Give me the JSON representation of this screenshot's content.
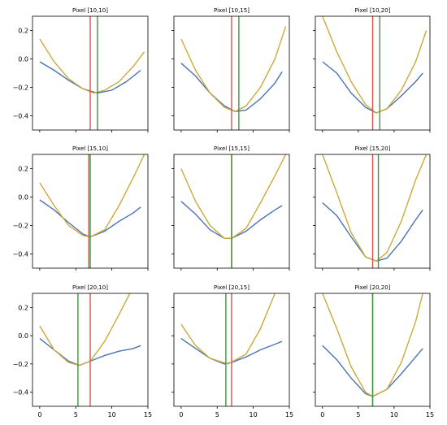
{
  "chart_data": [
    {
      "type": "line",
      "title": "Pixel [10,10]",
      "xlim": [
        -1,
        15
      ],
      "ylim": [
        -0.5,
        0.3
      ],
      "xticks": [
        0,
        5,
        10,
        15
      ],
      "yticks": [
        -0.4,
        -0.2,
        0.0,
        0.2
      ],
      "series": [
        {
          "color": "#4c72b0",
          "x": [
            0,
            2,
            4,
            6,
            8,
            10,
            12,
            14
          ],
          "y": [
            -0.02,
            -0.08,
            -0.15,
            -0.21,
            -0.24,
            -0.22,
            -0.16,
            -0.08
          ]
        },
        {
          "color": "#ccaa3a",
          "x": [
            0,
            2,
            4,
            6,
            7.5,
            9,
            11,
            13,
            14.5
          ],
          "y": [
            0.14,
            -0.02,
            -0.14,
            -0.21,
            -0.24,
            -0.22,
            -0.16,
            -0.05,
            0.05
          ]
        }
      ],
      "vlines": [
        {
          "x": 7,
          "color": "#d9534f"
        },
        {
          "x": 8,
          "color": "#3a9a3a"
        }
      ]
    },
    {
      "type": "line",
      "title": "Pixel [10,15]",
      "xlim": [
        -1,
        15
      ],
      "ylim": [
        -0.5,
        0.3
      ],
      "xticks": [
        0,
        5,
        10,
        15
      ],
      "yticks": [
        -0.4,
        -0.2,
        0.0,
        0.2
      ],
      "series": [
        {
          "color": "#4c72b0",
          "x": [
            0,
            2,
            4,
            6,
            7.5,
            9,
            11,
            13,
            14
          ],
          "y": [
            -0.03,
            -0.12,
            -0.24,
            -0.33,
            -0.37,
            -0.36,
            -0.28,
            -0.17,
            -0.09
          ]
        },
        {
          "color": "#ccaa3a",
          "x": [
            0,
            2,
            4,
            6,
            7.5,
            9,
            11,
            13,
            14.5
          ],
          "y": [
            0.14,
            -0.08,
            -0.24,
            -0.34,
            -0.37,
            -0.33,
            -0.2,
            0.0,
            0.23
          ]
        }
      ],
      "vlines": [
        {
          "x": 7,
          "color": "#d9534f"
        },
        {
          "x": 8,
          "color": "#3a9a3a"
        }
      ]
    },
    {
      "type": "line",
      "title": "Pixel [10,20]",
      "xlim": [
        -1,
        15
      ],
      "ylim": [
        -0.5,
        0.3
      ],
      "xticks": [
        0,
        5,
        10,
        15
      ],
      "yticks": [
        -0.4,
        -0.2,
        0.0,
        0.2
      ],
      "series": [
        {
          "color": "#4c72b0",
          "x": [
            0,
            2,
            4,
            6,
            7.5,
            9,
            11,
            13,
            14
          ],
          "y": [
            -0.02,
            -0.1,
            -0.24,
            -0.34,
            -0.38,
            -0.35,
            -0.26,
            -0.16,
            -0.1
          ]
        },
        {
          "color": "#ccaa3a",
          "x": [
            0,
            2,
            4,
            6,
            7.5,
            9,
            11,
            13,
            14.5
          ],
          "y": [
            0.3,
            0.05,
            -0.16,
            -0.32,
            -0.38,
            -0.35,
            -0.22,
            -0.02,
            0.2
          ]
        }
      ],
      "vlines": [
        {
          "x": 7,
          "color": "#d9534f"
        },
        {
          "x": 8,
          "color": "#3a9a3a"
        }
      ]
    },
    {
      "type": "line",
      "title": "Pixel [15,10]",
      "xlim": [
        -1,
        15
      ],
      "ylim": [
        -0.5,
        0.3
      ],
      "xticks": [
        0,
        5,
        10,
        15
      ],
      "yticks": [
        -0.4,
        -0.2,
        0.0,
        0.2
      ],
      "series": [
        {
          "color": "#4c72b0",
          "x": [
            0,
            2,
            4,
            6,
            7,
            9,
            11,
            13,
            14
          ],
          "y": [
            -0.02,
            -0.09,
            -0.18,
            -0.26,
            -0.28,
            -0.24,
            -0.17,
            -0.11,
            -0.07
          ]
        },
        {
          "color": "#ccaa3a",
          "x": [
            0,
            2,
            4,
            6,
            7,
            9,
            11,
            13,
            14.5
          ],
          "y": [
            0.1,
            -0.06,
            -0.2,
            -0.27,
            -0.28,
            -0.23,
            -0.06,
            0.14,
            0.3
          ]
        }
      ],
      "vlines": [
        {
          "x": 6.8,
          "color": "#d9534f"
        },
        {
          "x": 7,
          "color": "#3a9a3a"
        }
      ]
    },
    {
      "type": "line",
      "title": "Pixel [15,15]",
      "xlim": [
        -1,
        15
      ],
      "ylim": [
        -0.5,
        0.3
      ],
      "xticks": [
        0,
        5,
        10,
        15
      ],
      "yticks": [
        -0.4,
        -0.2,
        0.0,
        0.2
      ],
      "series": [
        {
          "color": "#4c72b0",
          "x": [
            0,
            2,
            4,
            6,
            7,
            9,
            11,
            13,
            14
          ],
          "y": [
            -0.03,
            -0.12,
            -0.23,
            -0.29,
            -0.29,
            -0.24,
            -0.16,
            -0.09,
            -0.06
          ]
        },
        {
          "color": "#ccaa3a",
          "x": [
            0,
            2,
            4,
            6,
            7,
            9,
            11,
            13,
            14.5
          ],
          "y": [
            0.2,
            -0.03,
            -0.2,
            -0.29,
            -0.29,
            -0.22,
            -0.04,
            0.15,
            0.3
          ]
        }
      ],
      "vlines": [
        {
          "x": 7,
          "color": "#d9534f"
        },
        {
          "x": 7,
          "color": "#3a9a3a"
        }
      ]
    },
    {
      "type": "line",
      "title": "Pixel [15,20]",
      "xlim": [
        -1,
        15
      ],
      "ylim": [
        -0.5,
        0.3
      ],
      "xticks": [
        0,
        5,
        10,
        15
      ],
      "yticks": [
        -0.4,
        -0.2,
        0.0,
        0.2
      ],
      "series": [
        {
          "color": "#4c72b0",
          "x": [
            0,
            2,
            4,
            6,
            7.5,
            9,
            11,
            13,
            14
          ],
          "y": [
            -0.04,
            -0.13,
            -0.28,
            -0.42,
            -0.45,
            -0.43,
            -0.31,
            -0.16,
            -0.09
          ]
        },
        {
          "color": "#ccaa3a",
          "x": [
            0,
            2,
            4,
            6,
            7.5,
            9,
            11,
            13,
            14.5
          ],
          "y": [
            0.3,
            0.03,
            -0.25,
            -0.42,
            -0.45,
            -0.39,
            -0.17,
            0.12,
            0.3
          ]
        }
      ],
      "vlines": [
        {
          "x": 7,
          "color": "#d9534f"
        },
        {
          "x": 7.8,
          "color": "#3a9a3a"
        }
      ]
    },
    {
      "type": "line",
      "title": "Pixel [20,10]",
      "xlim": [
        -1,
        15
      ],
      "ylim": [
        -0.5,
        0.3
      ],
      "xticks": [
        0,
        5,
        10,
        15
      ],
      "yticks": [
        -0.4,
        -0.2,
        0.0,
        0.2
      ],
      "series": [
        {
          "color": "#4c72b0",
          "x": [
            0,
            2,
            4,
            5.5,
            7,
            9,
            11,
            13,
            14
          ],
          "y": [
            -0.02,
            -0.1,
            -0.18,
            -0.21,
            -0.18,
            -0.14,
            -0.11,
            -0.09,
            -0.07
          ]
        },
        {
          "color": "#ccaa3a",
          "x": [
            0,
            2,
            4,
            5.5,
            7,
            9,
            11,
            12.5
          ],
          "y": [
            0.07,
            -0.1,
            -0.19,
            -0.21,
            -0.18,
            -0.04,
            0.15,
            0.3
          ]
        }
      ],
      "vlines": [
        {
          "x": 7,
          "color": "#d9534f"
        },
        {
          "x": 5.3,
          "color": "#3a9a3a"
        }
      ]
    },
    {
      "type": "line",
      "title": "Pixel [20,15]",
      "xlim": [
        -1,
        15
      ],
      "ylim": [
        -0.5,
        0.3
      ],
      "xticks": [
        0,
        5,
        10,
        15
      ],
      "yticks": [
        -0.4,
        -0.2,
        0.0,
        0.2
      ],
      "series": [
        {
          "color": "#4c72b0",
          "x": [
            0,
            2,
            4,
            6,
            7,
            9,
            11,
            13,
            14
          ],
          "y": [
            -0.02,
            -0.09,
            -0.16,
            -0.2,
            -0.19,
            -0.15,
            -0.1,
            -0.06,
            -0.04
          ]
        },
        {
          "color": "#ccaa3a",
          "x": [
            0,
            2,
            4,
            6.5,
            9,
            11,
            13
          ],
          "y": [
            0.08,
            -0.07,
            -0.16,
            -0.2,
            -0.13,
            0.05,
            0.3
          ]
        }
      ],
      "vlines": [
        {
          "x": 7,
          "color": "#d9534f"
        },
        {
          "x": 6.2,
          "color": "#3a9a3a"
        }
      ]
    },
    {
      "type": "line",
      "title": "Pixel [20,20]",
      "xlim": [
        -1,
        15
      ],
      "ylim": [
        -0.5,
        0.3
      ],
      "xticks": [
        0,
        5,
        10,
        15
      ],
      "yticks": [
        -0.4,
        -0.2,
        0.0,
        0.2
      ],
      "series": [
        {
          "color": "#4c72b0",
          "x": [
            0,
            2,
            4,
            6,
            7,
            9,
            11,
            13,
            14
          ],
          "y": [
            -0.07,
            -0.17,
            -0.3,
            -0.41,
            -0.43,
            -0.38,
            -0.27,
            -0.15,
            -0.09
          ]
        },
        {
          "color": "#ccaa3a",
          "x": [
            0,
            2,
            4,
            6,
            7,
            9,
            11,
            13,
            14
          ],
          "y": [
            0.3,
            0.05,
            -0.22,
            -0.4,
            -0.43,
            -0.38,
            -0.19,
            0.1,
            0.3
          ]
        }
      ],
      "vlines": [
        {
          "x": 7,
          "color": "#d9534f"
        },
        {
          "x": 7,
          "color": "#3a9a3a"
        }
      ]
    }
  ]
}
